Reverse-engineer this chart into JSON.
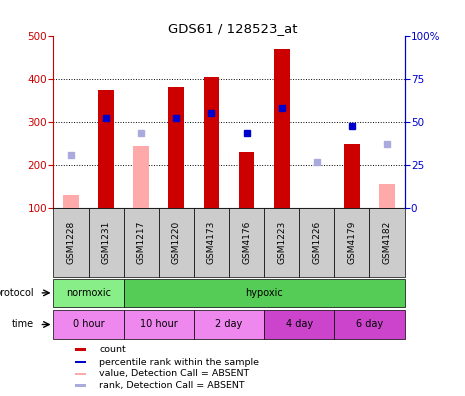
{
  "title": "GDS61 / 128523_at",
  "samples": [
    "GSM1228",
    "GSM1231",
    "GSM1217",
    "GSM1220",
    "GSM4173",
    "GSM4176",
    "GSM1223",
    "GSM1226",
    "GSM4179",
    "GSM4182"
  ],
  "count_values": [
    130,
    375,
    245,
    381,
    403,
    231,
    470,
    null,
    248,
    155
  ],
  "count_absent": [
    true,
    false,
    true,
    false,
    false,
    false,
    false,
    true,
    false,
    true
  ],
  "rank_values": [
    null,
    310,
    null,
    308,
    320,
    275,
    332,
    null,
    290,
    null
  ],
  "rank_absent_values": [
    222,
    null,
    275,
    null,
    null,
    null,
    null,
    208,
    null,
    248
  ],
  "ylim_left": [
    100,
    500
  ],
  "ylim_right": [
    0,
    100
  ],
  "yticks_left": [
    100,
    200,
    300,
    400,
    500
  ],
  "yticks_right": [
    0,
    25,
    50,
    75,
    100
  ],
  "color_red_bar": "#cc0000",
  "color_pink_bar": "#ffaaaa",
  "color_blue_square": "#0000cc",
  "color_lightblue_square": "#aaaadd",
  "protocol_color_normoxic": "#88ee88",
  "protocol_color_hypoxic": "#55cc55",
  "time_color_light": "#ee88ee",
  "time_color_dark": "#cc44cc",
  "time_colors": [
    "#ee88ee",
    "#ee88ee",
    "#ee88ee",
    "#cc44cc",
    "#cc44cc"
  ],
  "bg_color": "#ffffff",
  "sample_label_bg": "#cccccc",
  "legend_items": [
    {
      "label": "count",
      "color": "#cc0000"
    },
    {
      "label": "percentile rank within the sample",
      "color": "#0000cc"
    },
    {
      "label": "value, Detection Call = ABSENT",
      "color": "#ffaaaa"
    },
    {
      "label": "rank, Detection Call = ABSENT",
      "color": "#aaaadd"
    }
  ]
}
